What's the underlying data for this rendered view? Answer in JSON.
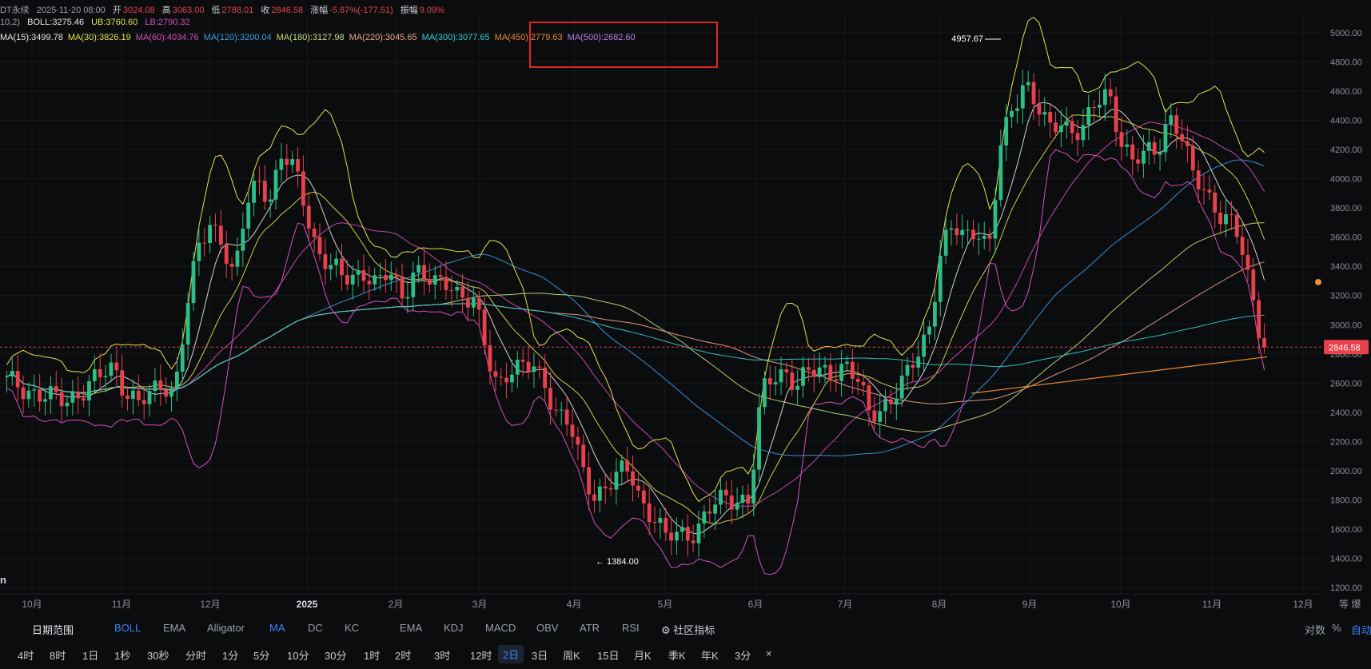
{
  "header": {
    "symbol": "DT永续",
    "date": "2025-11-20 08:00",
    "open_label": "开",
    "open": "3024.08",
    "high_label": "高",
    "high": "3063.00",
    "low_label": "低",
    "low": "2788.01",
    "close_label": "收",
    "close": "2846.58",
    "change_label": "涨幅",
    "change": "-5.87%(-177.51)",
    "amp_label": "振幅",
    "amp": "9.09%",
    "boll_params": "10,2)",
    "boll": "BOLL:3275.46",
    "ub": "UB:3760.60",
    "lb": "LB:2790.32",
    "ma": [
      {
        "label": "MA(15):3499.78",
        "color": "#e8e8e8"
      },
      {
        "label": "MA(30):3826.19",
        "color": "#e6e24a"
      },
      {
        "label": "MA(60):4034.76",
        "color": "#d94fbf"
      },
      {
        "label": "MA(120):3200.04",
        "color": "#3b9ee8"
      },
      {
        "label": "MA(180):3127.98",
        "color": "#c7e07a"
      },
      {
        "label": "MA(220):3045.65",
        "color": "#f2a58a"
      },
      {
        "label": "MA(300):3077.65",
        "color": "#34d1d6"
      },
      {
        "label": "MA(450):2779.63",
        "color": "#f08a2a"
      },
      {
        "label": "MA(500):2682.60",
        "color": "#b77fe6"
      }
    ]
  },
  "colors": {
    "up": "#2ebd85",
    "down": "#e8414d",
    "bg": "#0b0c0e",
    "grid": "#1b1d22",
    "accent": "#3b82f6"
  },
  "chart_data": {
    "type": "candlestick",
    "y_ticks": [
      "5000.00",
      "4800.00",
      "4600.00",
      "4400.00",
      "4200.00",
      "4000.00",
      "3800.00",
      "3600.00",
      "3400.00",
      "3200.00",
      "3000.00",
      "2800.00",
      "2600.00",
      "2400.00",
      "2200.00",
      "2000.00",
      "1800.00",
      "1600.00",
      "1400.00",
      "1200.00"
    ],
    "ylim": [
      1200,
      5000
    ],
    "x_ticks": [
      "10月",
      "11月",
      "12月",
      "2025",
      "2月",
      "3月",
      "4月",
      "5月",
      "6月",
      "7月",
      "8月",
      "9月",
      "10月",
      "11月",
      "12月"
    ],
    "current_price": "2846.58",
    "high_annotation": "4957.67",
    "low_annotation": "← 1384.00",
    "watermark": "n",
    "extra_label": "爆",
    "pct_label": "%",
    "log_label": "对数",
    "auto_label": "自动",
    "close_path": [
      2600,
      2580,
      2560,
      2520,
      2470,
      2480,
      2550,
      2600,
      2640,
      2700,
      2560,
      2470,
      2490,
      2600,
      2560,
      3100,
      3500,
      3700,
      3600,
      3300,
      3800,
      4000,
      3900,
      4150,
      4050,
      3800,
      3500,
      3400,
      3300,
      3350,
      3380,
      3250,
      3350,
      3200,
      3400,
      3300,
      3250,
      3320,
      3200,
      3150,
      2800,
      2600,
      2720,
      2680,
      2700,
      2600,
      2400,
      2300,
      2000,
      1850,
      1900,
      1950,
      2000,
      1800,
      1700,
      1520,
      1560,
      1580,
      1650,
      1750,
      1800,
      1830,
      1800,
      2500,
      2640,
      2700,
      2600,
      2650,
      2680,
      2700,
      2720,
      2600,
      2400,
      2450,
      2500,
      2600,
      2800,
      3000,
      3500,
      3650,
      3600,
      3700,
      3500,
      4200,
      4500,
      4700,
      4500,
      4300,
      4400,
      4350,
      4350,
      4500,
      4600,
      4300,
      4100,
      4150,
      4200,
      4450,
      4300,
      4000,
      3950,
      3800,
      3700,
      3550,
      3200,
      2846
    ]
  },
  "toolbar": {
    "items": [
      "日期范围",
      "BOLL",
      "EMA",
      "Alligator",
      "MA",
      "DC",
      "KC",
      "EMA",
      "KDJ",
      "MACD",
      "OBV",
      "ATR",
      "RSI",
      "社区指标"
    ],
    "active": [
      "BOLL",
      "MA"
    ],
    "right": [
      "对数",
      "%",
      "自动"
    ]
  },
  "timeframes": [
    "4时",
    "8时",
    "1日",
    "1秒",
    "30秒",
    "分时",
    "1分",
    "5分",
    "10分",
    "30分",
    "1时",
    "2时",
    "3时",
    "12时",
    "2日",
    "3日",
    "周K",
    "15日",
    "月K",
    "季K",
    "年K",
    "3分"
  ],
  "timeframe_active": "2日",
  "close_x": "×"
}
